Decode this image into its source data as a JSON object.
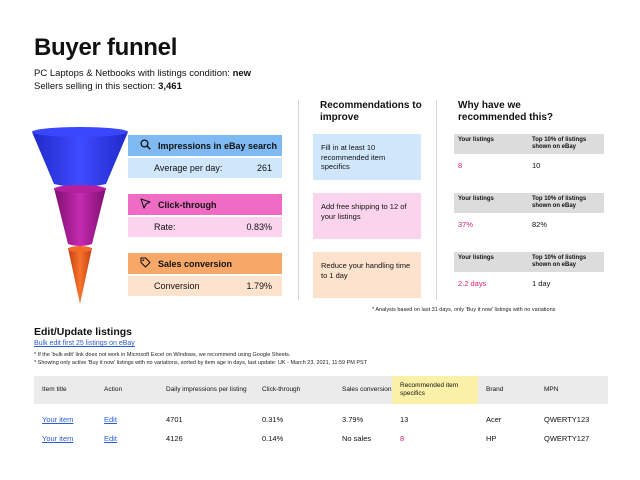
{
  "title": "Buyer funnel",
  "subtitle_prefix": "PC Laptops & Netbooks with listings condition: ",
  "subtitle_condition": "new",
  "sellers_prefix": "Sellers selling in this section: ",
  "sellers_count": "3,461",
  "funnel": [
    {
      "label": "Impressions in eBay search",
      "icon": "magnifier-icon",
      "metric": "Average per day:",
      "value": "261"
    },
    {
      "label": "Click-through",
      "icon": "cursor-icon",
      "metric": "Rate:",
      "value": "0.83%"
    },
    {
      "label": "Sales conversion",
      "icon": "tag-icon",
      "metric": "Conversion",
      "value": "1.79%"
    }
  ],
  "recommendations": {
    "header": "Recommendations to improve",
    "items": [
      "Fill in at least 10 recommended item specifics",
      "Add free shipping to 12 of your listings",
      "Reduce your handling time to 1 day"
    ]
  },
  "why": {
    "header": "Why have we recommended this?",
    "col1": "Your listings",
    "col2": "Top 10% of listings shown on eBay",
    "rows": [
      {
        "yours": "8",
        "top": "10"
      },
      {
        "yours": "37%",
        "top": "82%"
      },
      {
        "yours": "2.2 days",
        "top": "1 day"
      }
    ]
  },
  "analysis_note": "* Analysis based on last 31 days, only 'Buy it now' listings with no variations",
  "edit": {
    "title": "Edit/Update listings",
    "bulk_link": "Bulk edit first 25 listings on eBay",
    "note1": "* If the 'bulk edit' link does not work in Microsoft Excel on Windows, we recommend using Google Sheets.",
    "note2": "* Showing only active 'Buy it now' listings with no variations, sorted by item age in days, last update: UK - March 23, 2021, 11:59 PM PST"
  },
  "table": {
    "headers": [
      "Item title",
      "Action",
      "Daily impressions per listing",
      "Click-through",
      "Sales conversion",
      "Recommended item specifics",
      "Brand",
      "MPN"
    ],
    "rows": [
      [
        "Your item",
        "Edit",
        "4701",
        "0.31%",
        "3.79%",
        "13",
        "Acer",
        "QWERTY123"
      ],
      [
        "Your item",
        "Edit",
        "4126",
        "0.14%",
        "No sales",
        "8",
        "HP",
        "QWERTY127"
      ]
    ]
  },
  "colors": {
    "impressions": "#7fb9f1",
    "click_through": "#f06cc4",
    "conversion": "#f7a869",
    "funnel_blue": "#2f3cf2",
    "funnel_purple": "#a6198f",
    "funnel_orange": "#ef5a1c",
    "link": "#2a5bd7",
    "alert": "#d9227a"
  }
}
